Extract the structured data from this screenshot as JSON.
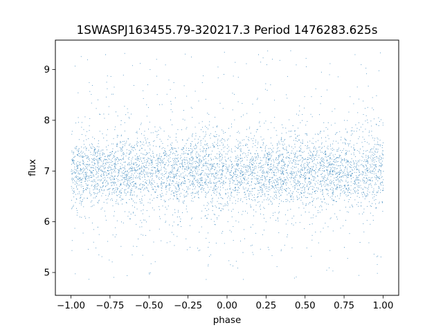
{
  "chart_data": {
    "type": "scatter",
    "title": "1SWASPJ163455.79-320217.3 Period 1476283.625s",
    "xlabel": "phase",
    "ylabel": "flux",
    "xlim": [
      -1.1,
      1.1
    ],
    "ylim": [
      4.55,
      9.58
    ],
    "x_ticks": [
      -1.0,
      -0.75,
      -0.5,
      -0.25,
      0.0,
      0.25,
      0.5,
      0.75,
      1.0
    ],
    "x_tick_labels": [
      "−1.00",
      "−0.75",
      "−0.50",
      "−0.25",
      "0.00",
      "0.25",
      "0.50",
      "0.75",
      "1.00"
    ],
    "y_ticks": [
      5,
      6,
      7,
      8,
      9
    ],
    "y_tick_labels": [
      "5",
      "6",
      "7",
      "8",
      "9"
    ],
    "grid": false,
    "legend": "none",
    "marker_color": "#1f77b4",
    "series": [
      {
        "x_range": [
          -1.0,
          1.0
        ],
        "core_band": [
          6.6,
          7.5
        ],
        "median": 7.0,
        "outlier_range": [
          4.8,
          9.4
        ],
        "sample_points": [
          {
            "x": -1.0,
            "y": 7.0
          },
          {
            "x": -0.95,
            "y": 7.3
          },
          {
            "x": -0.9,
            "y": 6.9
          },
          {
            "x": -0.83,
            "y": 5.9
          },
          {
            "x": -0.78,
            "y": 9.3
          },
          {
            "x": -0.72,
            "y": 7.1
          },
          {
            "x": -0.68,
            "y": 8.0
          },
          {
            "x": -0.6,
            "y": 6.8
          },
          {
            "x": -0.55,
            "y": 7.2
          },
          {
            "x": -0.45,
            "y": 6.9
          },
          {
            "x": -0.4,
            "y": 6.4
          },
          {
            "x": -0.32,
            "y": 6.1
          },
          {
            "x": -0.28,
            "y": 8.2
          },
          {
            "x": -0.22,
            "y": 7.0
          },
          {
            "x": -0.18,
            "y": 5.8
          },
          {
            "x": -0.12,
            "y": 7.3
          },
          {
            "x": -0.05,
            "y": 6.8
          },
          {
            "x": 0.0,
            "y": 7.0
          },
          {
            "x": 0.05,
            "y": 7.4
          },
          {
            "x": 0.1,
            "y": 5.4
          },
          {
            "x": 0.15,
            "y": 5.9
          },
          {
            "x": 0.2,
            "y": 9.3
          },
          {
            "x": 0.28,
            "y": 7.1
          },
          {
            "x": 0.35,
            "y": 6.7
          },
          {
            "x": 0.42,
            "y": 7.9
          },
          {
            "x": 0.5,
            "y": 6.2
          },
          {
            "x": 0.55,
            "y": 7.1
          },
          {
            "x": 0.62,
            "y": 7.0
          },
          {
            "x": 0.7,
            "y": 6.1
          },
          {
            "x": 0.75,
            "y": 5.5
          },
          {
            "x": 0.8,
            "y": 7.8
          },
          {
            "x": 0.85,
            "y": 5.6
          },
          {
            "x": 0.9,
            "y": 7.2
          },
          {
            "x": 0.97,
            "y": 7.9
          },
          {
            "x": 1.0,
            "y": 7.0
          }
        ]
      }
    ]
  }
}
